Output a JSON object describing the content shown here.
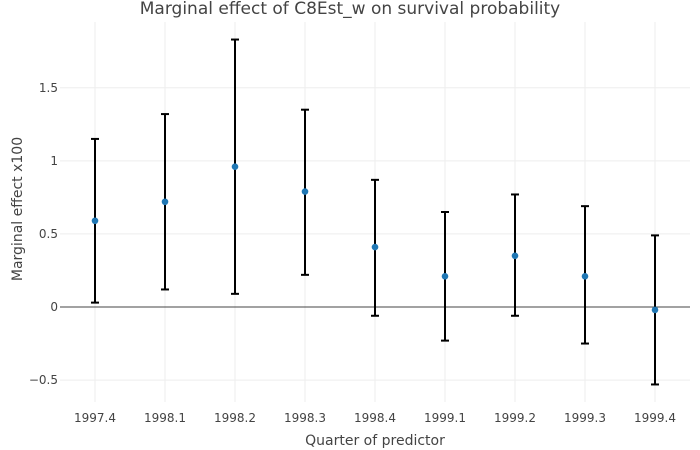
{
  "chart_data": {
    "type": "scatter",
    "title": "Marginal effect of C8Est_w on survival probability",
    "xlabel": "Quarter of predictor",
    "ylabel": "Marginal effect x100",
    "categories": [
      "1997.4",
      "1998.1",
      "1998.2",
      "1998.3",
      "1998.4",
      "1999.1",
      "1999.2",
      "1999.3",
      "1999.4"
    ],
    "values": [
      0.59,
      0.72,
      0.96,
      0.79,
      0.41,
      0.21,
      0.35,
      0.21,
      -0.02
    ],
    "lower": [
      0.03,
      0.12,
      0.09,
      0.22,
      -0.06,
      -0.23,
      -0.06,
      -0.25,
      -0.53
    ],
    "upper": [
      1.15,
      1.32,
      1.83,
      1.35,
      0.87,
      0.65,
      0.77,
      0.69,
      0.49
    ],
    "ylim": [
      -0.65,
      1.95
    ],
    "yticks": [
      -0.5,
      0,
      0.5,
      1,
      1.5
    ],
    "ytick_labels": [
      "−0.5",
      "0",
      "0.5",
      "1",
      "1.5"
    ],
    "grid": true,
    "zero_line": true,
    "colors": {
      "point": "#1f77b4",
      "error_bar": "#000000",
      "grid": "#eeeeee",
      "zero_line": "#444444"
    }
  }
}
